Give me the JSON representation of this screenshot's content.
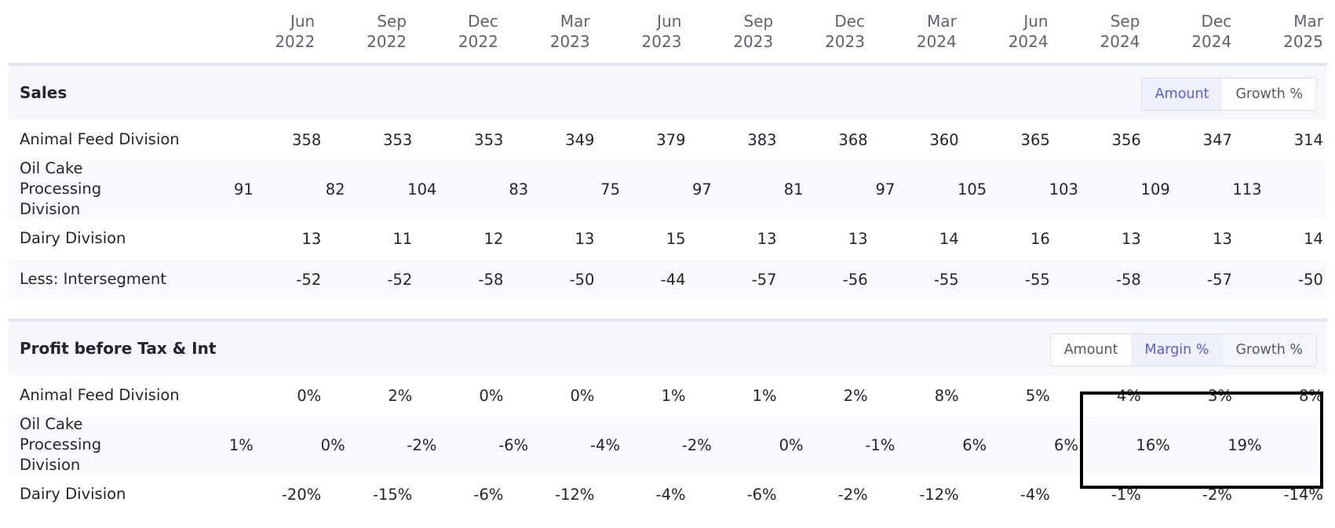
{
  "periods": [
    {
      "month": "Jun",
      "year": "2022"
    },
    {
      "month": "Sep",
      "year": "2022"
    },
    {
      "month": "Dec",
      "year": "2022"
    },
    {
      "month": "Mar",
      "year": "2023"
    },
    {
      "month": "Jun",
      "year": "2023"
    },
    {
      "month": "Sep",
      "year": "2023"
    },
    {
      "month": "Dec",
      "year": "2023"
    },
    {
      "month": "Mar",
      "year": "2024"
    },
    {
      "month": "Jun",
      "year": "2024"
    },
    {
      "month": "Sep",
      "year": "2024"
    },
    {
      "month": "Dec",
      "year": "2024"
    },
    {
      "month": "Mar",
      "year": "2025"
    }
  ],
  "sales": {
    "title": "Sales",
    "toggle": [
      "Amount",
      "Growth %"
    ],
    "toggle_active": "Amount",
    "rows": [
      {
        "label": "Animal Feed Division",
        "values": [
          "358",
          "353",
          "353",
          "349",
          "379",
          "383",
          "368",
          "360",
          "365",
          "356",
          "347",
          "314"
        ]
      },
      {
        "label": "Oil Cake Processing Division",
        "values": [
          "91",
          "82",
          "104",
          "83",
          "75",
          "97",
          "81",
          "97",
          "105",
          "103",
          "109",
          "113"
        ]
      },
      {
        "label": "Dairy Division",
        "values": [
          "13",
          "11",
          "12",
          "13",
          "15",
          "13",
          "13",
          "14",
          "16",
          "13",
          "13",
          "14"
        ]
      },
      {
        "label": "Less: Intersegment",
        "values": [
          "-52",
          "-52",
          "-58",
          "-50",
          "-44",
          "-57",
          "-56",
          "-55",
          "-55",
          "-58",
          "-57",
          "-50"
        ]
      }
    ]
  },
  "pbt": {
    "title": "Profit before Tax & Int",
    "toggle": [
      "Amount",
      "Margin %",
      "Growth %"
    ],
    "toggle_active": "Margin %",
    "rows": [
      {
        "label": "Animal Feed Division",
        "values": [
          "0%",
          "2%",
          "0%",
          "0%",
          "1%",
          "1%",
          "2%",
          "8%",
          "5%",
          "4%",
          "3%",
          "8%"
        ]
      },
      {
        "label": "Oil Cake Processing Division",
        "values": [
          "1%",
          "0%",
          "-2%",
          "-6%",
          "-4%",
          "-2%",
          "0%",
          "-1%",
          "6%",
          "6%",
          "16%",
          "19%"
        ]
      },
      {
        "label": "Dairy Division",
        "values": [
          "-20%",
          "-15%",
          "-6%",
          "-12%",
          "-4%",
          "-6%",
          "-2%",
          "-12%",
          "-4%",
          "-1%",
          "-2%",
          "-14%"
        ]
      }
    ]
  }
}
